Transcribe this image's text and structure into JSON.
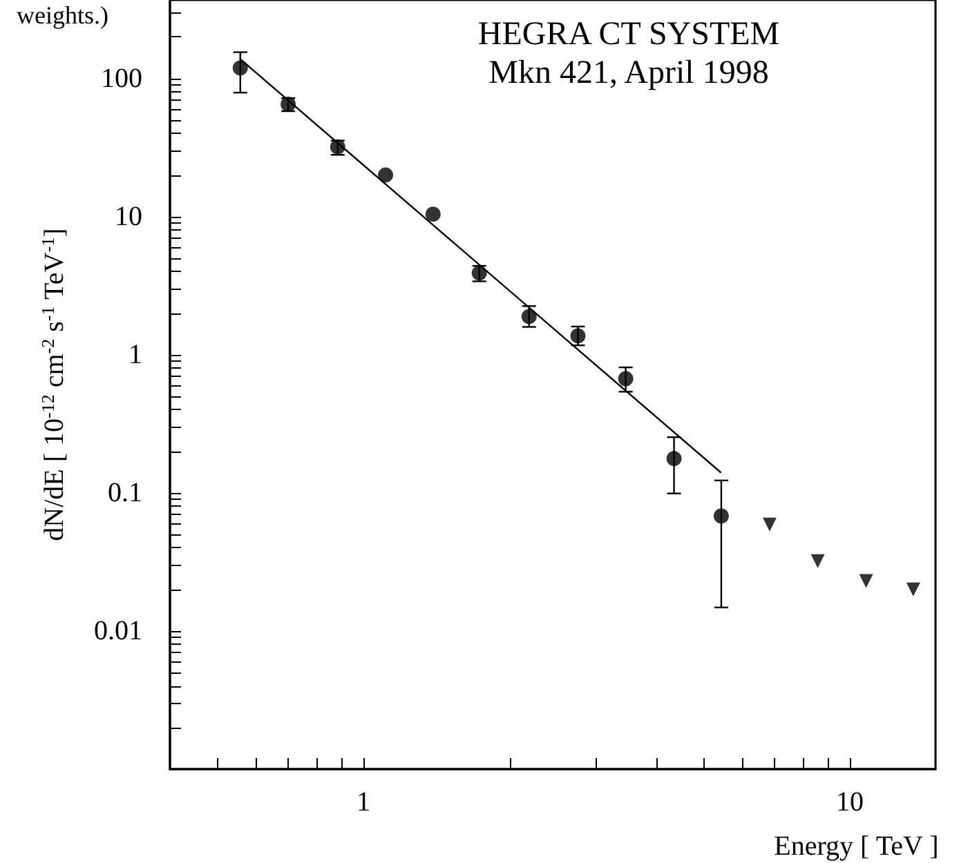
{
  "chart_data": {
    "type": "scatter",
    "title": "HEGRA CT SYSTEM",
    "subtitle": "Mkn 421, April 1998",
    "xlabel": "Energy [ TeV ]",
    "ylabel": "dN/dE [ 10$^{-12}$ cm$^{-2}$ s$^{-1}$ TeV$^{-1}$]",
    "annotations": [
      "weights.)"
    ],
    "log": "xy",
    "grid": false,
    "xlim": [
      0.4,
      15
    ],
    "ylim": [
      0.001,
      370
    ],
    "xticks": [
      {
        "value": 0.5,
        "label": null
      },
      {
        "value": 0.6,
        "label": null
      },
      {
        "value": 0.7,
        "label": null
      },
      {
        "value": 0.8,
        "label": null
      },
      {
        "value": 0.9,
        "label": null
      },
      1,
      {
        "value": 2,
        "label": null
      },
      {
        "value": 3,
        "label": null
      },
      {
        "value": 4,
        "label": null
      },
      {
        "value": 5,
        "label": null
      },
      {
        "value": 6,
        "label": null
      },
      {
        "value": 7,
        "label": null
      },
      {
        "value": 8,
        "label": null
      },
      {
        "value": 9,
        "label": null
      },
      10
    ],
    "yticks": [
      {
        "value": 0.002,
        "label": null
      },
      {
        "value": 0.003,
        "label": null
      },
      {
        "value": 0.004,
        "label": null
      },
      {
        "value": 0.005,
        "label": null
      },
      {
        "value": 0.006,
        "label": null
      },
      {
        "value": 0.007,
        "label": null
      },
      {
        "value": 0.008,
        "label": null
      },
      {
        "value": 0.009,
        "label": null
      },
      0.01,
      {
        "value": 0.02,
        "label": null
      },
      {
        "value": 0.03,
        "label": null
      },
      {
        "value": 0.04,
        "label": null
      },
      {
        "value": 0.05,
        "label": null
      },
      {
        "value": 0.06,
        "label": null
      },
      {
        "value": 0.07,
        "label": null
      },
      {
        "value": 0.08,
        "label": null
      },
      {
        "value": 0.09,
        "label": null
      },
      0.1,
      {
        "value": 0.2,
        "label": null
      },
      {
        "value": 0.3,
        "label": null
      },
      {
        "value": 0.4,
        "label": null
      },
      {
        "value": 0.5,
        "label": null
      },
      {
        "value": 0.6,
        "label": null
      },
      {
        "value": 0.7,
        "label": null
      },
      {
        "value": 0.8,
        "label": null
      },
      {
        "value": 0.9,
        "label": null
      },
      1,
      {
        "value": 2,
        "label": null
      },
      {
        "value": 3,
        "label": null
      },
      {
        "value": 4,
        "label": null
      },
      {
        "value": 5,
        "label": null
      },
      {
        "value": 6,
        "label": null
      },
      {
        "value": 7,
        "label": null
      },
      {
        "value": 8,
        "label": null
      },
      {
        "value": 9,
        "label": null
      },
      10,
      {
        "value": 20,
        "label": null
      },
      {
        "value": 30,
        "label": null
      },
      {
        "value": 40,
        "label": null
      },
      {
        "value": 50,
        "label": null
      },
      {
        "value": 60,
        "label": null
      },
      {
        "value": 70,
        "label": null
      },
      {
        "value": 80,
        "label": null
      },
      {
        "value": 90,
        "label": null
      },
      100,
      {
        "value": 200,
        "label": null
      },
      {
        "value": 300,
        "label": null
      }
    ],
    "series": [
      {
        "color": "#000000",
        "marker": "circle",
        "x": [
          0.558,
          0.7,
          0.885,
          1.11,
          1.39,
          1.73,
          2.19,
          2.76,
          3.46,
          4.35,
          5.44
        ],
        "values": [
          119,
          65,
          32,
          20,
          10.4,
          3.9,
          1.89,
          1.37,
          0.67,
          0.177,
          0.068
        ],
        "errors": [
          [
            79,
            155
          ],
          [
            58,
            72
          ],
          [
            28,
            35.5
          ],
          null,
          null,
          [
            3.4,
            4.4
          ],
          [
            1.59,
            2.25
          ],
          [
            1.17,
            1.6
          ],
          [
            0.54,
            0.81
          ],
          [
            0.099,
            0.253
          ],
          [
            0.0148,
            0.123
          ]
        ]
      },
      {
        "color": "#000000",
        "marker": "triangle",
        "x": [
          6.84,
          8.59,
          10.8,
          13.5
        ],
        "values": [
          0.059,
          0.032,
          0.023,
          0.02
        ]
      },
      {
        "type": "line",
        "color": "#000000",
        "marker": "none",
        "line_style": "solid",
        "x": [
          0.558,
          5.42
        ],
        "values": [
          138,
          0.141
        ]
      }
    ]
  }
}
